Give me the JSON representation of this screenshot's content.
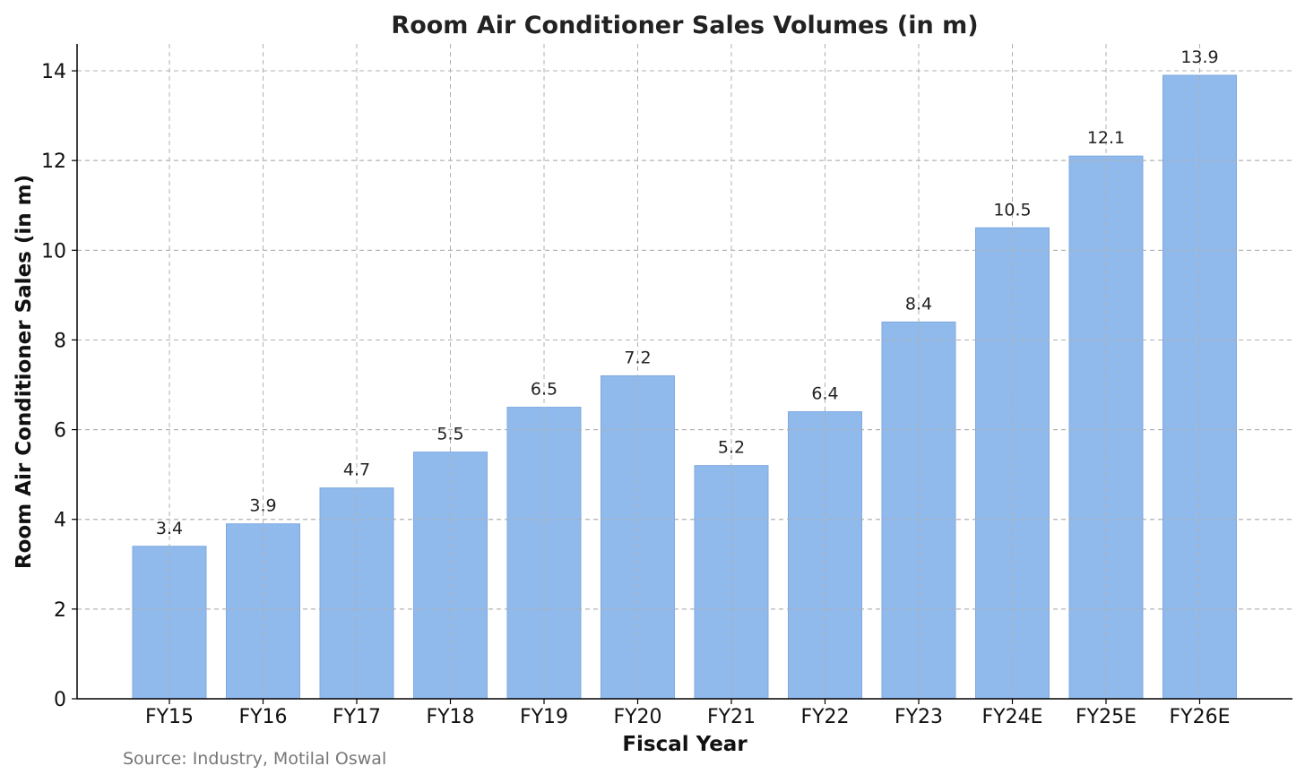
{
  "chart_data": {
    "type": "bar",
    "title": "Room Air Conditioner Sales Volumes (in m)",
    "xlabel": "Fiscal Year",
    "ylabel": "Room Air Conditioner Sales (in m)",
    "categories": [
      "FY15",
      "FY16",
      "FY17",
      "FY18",
      "FY19",
      "FY20",
      "FY21",
      "FY22",
      "FY23",
      "FY24E",
      "FY25E",
      "FY26E"
    ],
    "values": [
      3.4,
      3.9,
      4.7,
      5.5,
      6.5,
      7.2,
      5.2,
      6.4,
      8.4,
      10.5,
      12.1,
      13.9
    ],
    "data_labels": [
      "3.4",
      "3.9",
      "4.7",
      "5.5",
      "6.5",
      "7.2",
      "5.2",
      "6.4",
      "8.4",
      "10.5",
      "12.1",
      "13.9"
    ],
    "yticks": [
      0,
      2,
      4,
      6,
      8,
      10,
      12,
      14
    ],
    "ylim": [
      0,
      14.6
    ],
    "grid": true,
    "bar_color": "#90b9ec",
    "bar_edge_color": "#7fa9e0"
  },
  "source_note": "Source: Industry, Motilal Oswal"
}
